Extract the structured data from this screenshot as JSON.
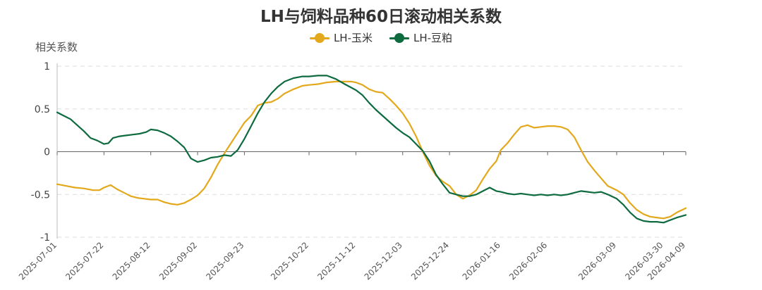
{
  "title": "LH与饲料品种60日滚动相关系数",
  "y_axis_label": "相关系数",
  "legend": [
    {
      "label": "LH-玉米",
      "color": "#E3A81B"
    },
    {
      "label": "LH-豆粕",
      "color": "#0E6B3F"
    }
  ],
  "chart_data": {
    "type": "line",
    "title": "LH与饲料品种60日滚动相关系数",
    "ylabel": "相关系数",
    "xlabel": "",
    "ylim": [
      -1,
      1
    ],
    "y_ticks": [
      "1",
      "0.5",
      "0",
      "-0.5",
      "-1"
    ],
    "y_tick_values": [
      1,
      0.5,
      0,
      -0.5,
      -1
    ],
    "x_range": [
      "2025-07-01",
      "2026-04-09"
    ],
    "x_ticks": [
      "2025-07-01",
      "2025-07-22",
      "2025-08-12",
      "2025-09-02",
      "2025-09-23",
      "2025-10-22",
      "2025-11-12",
      "2025-12-03",
      "2025-12-24",
      "2026-01-16",
      "2026-02-06",
      "2026-03-09",
      "2026-03-30",
      "2026-04-09"
    ],
    "grid": "horizontal-dashed",
    "legend_position": "top-center",
    "series": [
      {
        "name": "LH-玉米",
        "color": "#E3A81B",
        "points": [
          [
            "2025-07-01",
            -0.38
          ],
          [
            "2025-07-05",
            -0.4
          ],
          [
            "2025-07-09",
            -0.42
          ],
          [
            "2025-07-13",
            -0.43
          ],
          [
            "2025-07-17",
            -0.45
          ],
          [
            "2025-07-20",
            -0.45
          ],
          [
            "2025-07-22",
            -0.42
          ],
          [
            "2025-07-25",
            -0.39
          ],
          [
            "2025-07-28",
            -0.44
          ],
          [
            "2025-07-31",
            -0.48
          ],
          [
            "2025-08-03",
            -0.52
          ],
          [
            "2025-08-06",
            -0.54
          ],
          [
            "2025-08-09",
            -0.55
          ],
          [
            "2025-08-12",
            -0.56
          ],
          [
            "2025-08-15",
            -0.56
          ],
          [
            "2025-08-18",
            -0.59
          ],
          [
            "2025-08-21",
            -0.61
          ],
          [
            "2025-08-24",
            -0.62
          ],
          [
            "2025-08-27",
            -0.6
          ],
          [
            "2025-08-30",
            -0.56
          ],
          [
            "2025-09-02",
            -0.51
          ],
          [
            "2025-09-05",
            -0.43
          ],
          [
            "2025-09-08",
            -0.3
          ],
          [
            "2025-09-11",
            -0.15
          ],
          [
            "2025-09-14",
            -0.02
          ],
          [
            "2025-09-17",
            0.1
          ],
          [
            "2025-09-20",
            0.22
          ],
          [
            "2025-09-23",
            0.34
          ],
          [
            "2025-09-26",
            0.42
          ],
          [
            "2025-09-29",
            0.54
          ],
          [
            "2025-10-02",
            0.57
          ],
          [
            "2025-10-05",
            0.58
          ],
          [
            "2025-10-08",
            0.62
          ],
          [
            "2025-10-11",
            0.68
          ],
          [
            "2025-10-15",
            0.73
          ],
          [
            "2025-10-19",
            0.77
          ],
          [
            "2025-10-22",
            0.78
          ],
          [
            "2025-10-26",
            0.79
          ],
          [
            "2025-10-30",
            0.81
          ],
          [
            "2025-11-03",
            0.82
          ],
          [
            "2025-11-07",
            0.82
          ],
          [
            "2025-11-10",
            0.82
          ],
          [
            "2025-11-12",
            0.81
          ],
          [
            "2025-11-15",
            0.78
          ],
          [
            "2025-11-18",
            0.73
          ],
          [
            "2025-11-21",
            0.7
          ],
          [
            "2025-11-24",
            0.69
          ],
          [
            "2025-11-27",
            0.62
          ],
          [
            "2025-11-30",
            0.54
          ],
          [
            "2025-12-03",
            0.45
          ],
          [
            "2025-12-06",
            0.33
          ],
          [
            "2025-12-09",
            0.18
          ],
          [
            "2025-12-12",
            0.0
          ],
          [
            "2025-12-15",
            -0.16
          ],
          [
            "2025-12-18",
            -0.28
          ],
          [
            "2025-12-21",
            -0.35
          ],
          [
            "2025-12-24",
            -0.4
          ],
          [
            "2025-12-27",
            -0.5
          ],
          [
            "2025-12-30",
            -0.55
          ],
          [
            "2026-01-02",
            -0.51
          ],
          [
            "2026-01-05",
            -0.45
          ],
          [
            "2026-01-08",
            -0.32
          ],
          [
            "2026-01-11",
            -0.2
          ],
          [
            "2026-01-14",
            -0.11
          ],
          [
            "2026-01-16",
            0.02
          ],
          [
            "2026-01-19",
            0.1
          ],
          [
            "2026-01-22",
            0.2
          ],
          [
            "2026-01-25",
            0.29
          ],
          [
            "2026-01-28",
            0.31
          ],
          [
            "2026-01-31",
            0.28
          ],
          [
            "2026-02-03",
            0.29
          ],
          [
            "2026-02-06",
            0.3
          ],
          [
            "2026-02-09",
            0.3
          ],
          [
            "2026-02-12",
            0.29
          ],
          [
            "2026-02-15",
            0.26
          ],
          [
            "2026-02-18",
            0.17
          ],
          [
            "2026-02-21",
            0.02
          ],
          [
            "2026-02-24",
            -0.12
          ],
          [
            "2026-02-27",
            -0.22
          ],
          [
            "2026-03-02",
            -0.31
          ],
          [
            "2026-03-05",
            -0.4
          ],
          [
            "2026-03-09",
            -0.45
          ],
          [
            "2026-03-12",
            -0.5
          ],
          [
            "2026-03-15",
            -0.6
          ],
          [
            "2026-03-18",
            -0.68
          ],
          [
            "2026-03-21",
            -0.73
          ],
          [
            "2026-03-24",
            -0.76
          ],
          [
            "2026-03-27",
            -0.77
          ],
          [
            "2026-03-30",
            -0.78
          ],
          [
            "2026-04-02",
            -0.76
          ],
          [
            "2026-04-05",
            -0.71
          ],
          [
            "2026-04-09",
            -0.66
          ]
        ]
      },
      {
        "name": "LH-豆粕",
        "color": "#0E6B3F",
        "points": [
          [
            "2025-07-01",
            0.46
          ],
          [
            "2025-07-04",
            0.42
          ],
          [
            "2025-07-07",
            0.38
          ],
          [
            "2025-07-10",
            0.31
          ],
          [
            "2025-07-13",
            0.24
          ],
          [
            "2025-07-16",
            0.16
          ],
          [
            "2025-07-19",
            0.13
          ],
          [
            "2025-07-22",
            0.09
          ],
          [
            "2025-07-24",
            0.1
          ],
          [
            "2025-07-26",
            0.16
          ],
          [
            "2025-07-29",
            0.18
          ],
          [
            "2025-08-01",
            0.19
          ],
          [
            "2025-08-04",
            0.2
          ],
          [
            "2025-08-07",
            0.21
          ],
          [
            "2025-08-10",
            0.23
          ],
          [
            "2025-08-12",
            0.26
          ],
          [
            "2025-08-15",
            0.25
          ],
          [
            "2025-08-18",
            0.22
          ],
          [
            "2025-08-21",
            0.18
          ],
          [
            "2025-08-24",
            0.12
          ],
          [
            "2025-08-27",
            0.05
          ],
          [
            "2025-08-30",
            -0.08
          ],
          [
            "2025-09-02",
            -0.12
          ],
          [
            "2025-09-05",
            -0.1
          ],
          [
            "2025-09-08",
            -0.07
          ],
          [
            "2025-09-11",
            -0.06
          ],
          [
            "2025-09-14",
            -0.04
          ],
          [
            "2025-09-17",
            -0.05
          ],
          [
            "2025-09-20",
            0.02
          ],
          [
            "2025-09-23",
            0.15
          ],
          [
            "2025-09-26",
            0.3
          ],
          [
            "2025-09-29",
            0.45
          ],
          [
            "2025-10-02",
            0.58
          ],
          [
            "2025-10-05",
            0.68
          ],
          [
            "2025-10-08",
            0.76
          ],
          [
            "2025-10-11",
            0.82
          ],
          [
            "2025-10-15",
            0.86
          ],
          [
            "2025-10-19",
            0.88
          ],
          [
            "2025-10-22",
            0.88
          ],
          [
            "2025-10-26",
            0.89
          ],
          [
            "2025-10-30",
            0.89
          ],
          [
            "2025-11-03",
            0.85
          ],
          [
            "2025-11-07",
            0.79
          ],
          [
            "2025-11-12",
            0.72
          ],
          [
            "2025-11-15",
            0.66
          ],
          [
            "2025-11-18",
            0.57
          ],
          [
            "2025-11-21",
            0.49
          ],
          [
            "2025-11-24",
            0.42
          ],
          [
            "2025-11-27",
            0.35
          ],
          [
            "2025-11-30",
            0.28
          ],
          [
            "2025-12-03",
            0.22
          ],
          [
            "2025-12-06",
            0.17
          ],
          [
            "2025-12-09",
            0.09
          ],
          [
            "2025-12-12",
            0.01
          ],
          [
            "2025-12-15",
            -0.11
          ],
          [
            "2025-12-18",
            -0.27
          ],
          [
            "2025-12-21",
            -0.38
          ],
          [
            "2025-12-24",
            -0.48
          ],
          [
            "2025-12-27",
            -0.5
          ],
          [
            "2025-12-30",
            -0.52
          ],
          [
            "2026-01-02",
            -0.52
          ],
          [
            "2026-01-05",
            -0.5
          ],
          [
            "2026-01-08",
            -0.46
          ],
          [
            "2026-01-11",
            -0.42
          ],
          [
            "2026-01-14",
            -0.46
          ],
          [
            "2026-01-16",
            -0.47
          ],
          [
            "2026-01-19",
            -0.49
          ],
          [
            "2026-01-22",
            -0.5
          ],
          [
            "2026-01-25",
            -0.49
          ],
          [
            "2026-01-28",
            -0.5
          ],
          [
            "2026-01-31",
            -0.51
          ],
          [
            "2026-02-03",
            -0.5
          ],
          [
            "2026-02-06",
            -0.51
          ],
          [
            "2026-02-09",
            -0.5
          ],
          [
            "2026-02-12",
            -0.51
          ],
          [
            "2026-02-15",
            -0.5
          ],
          [
            "2026-02-18",
            -0.48
          ],
          [
            "2026-02-21",
            -0.46
          ],
          [
            "2026-02-24",
            -0.47
          ],
          [
            "2026-02-27",
            -0.48
          ],
          [
            "2026-03-02",
            -0.47
          ],
          [
            "2026-03-05",
            -0.5
          ],
          [
            "2026-03-09",
            -0.55
          ],
          [
            "2026-03-12",
            -0.62
          ],
          [
            "2026-03-15",
            -0.71
          ],
          [
            "2026-03-18",
            -0.78
          ],
          [
            "2026-03-21",
            -0.81
          ],
          [
            "2026-03-24",
            -0.82
          ],
          [
            "2026-03-27",
            -0.82
          ],
          [
            "2026-03-30",
            -0.83
          ],
          [
            "2026-04-02",
            -0.8
          ],
          [
            "2026-04-05",
            -0.77
          ],
          [
            "2026-04-09",
            -0.74
          ]
        ]
      }
    ]
  }
}
